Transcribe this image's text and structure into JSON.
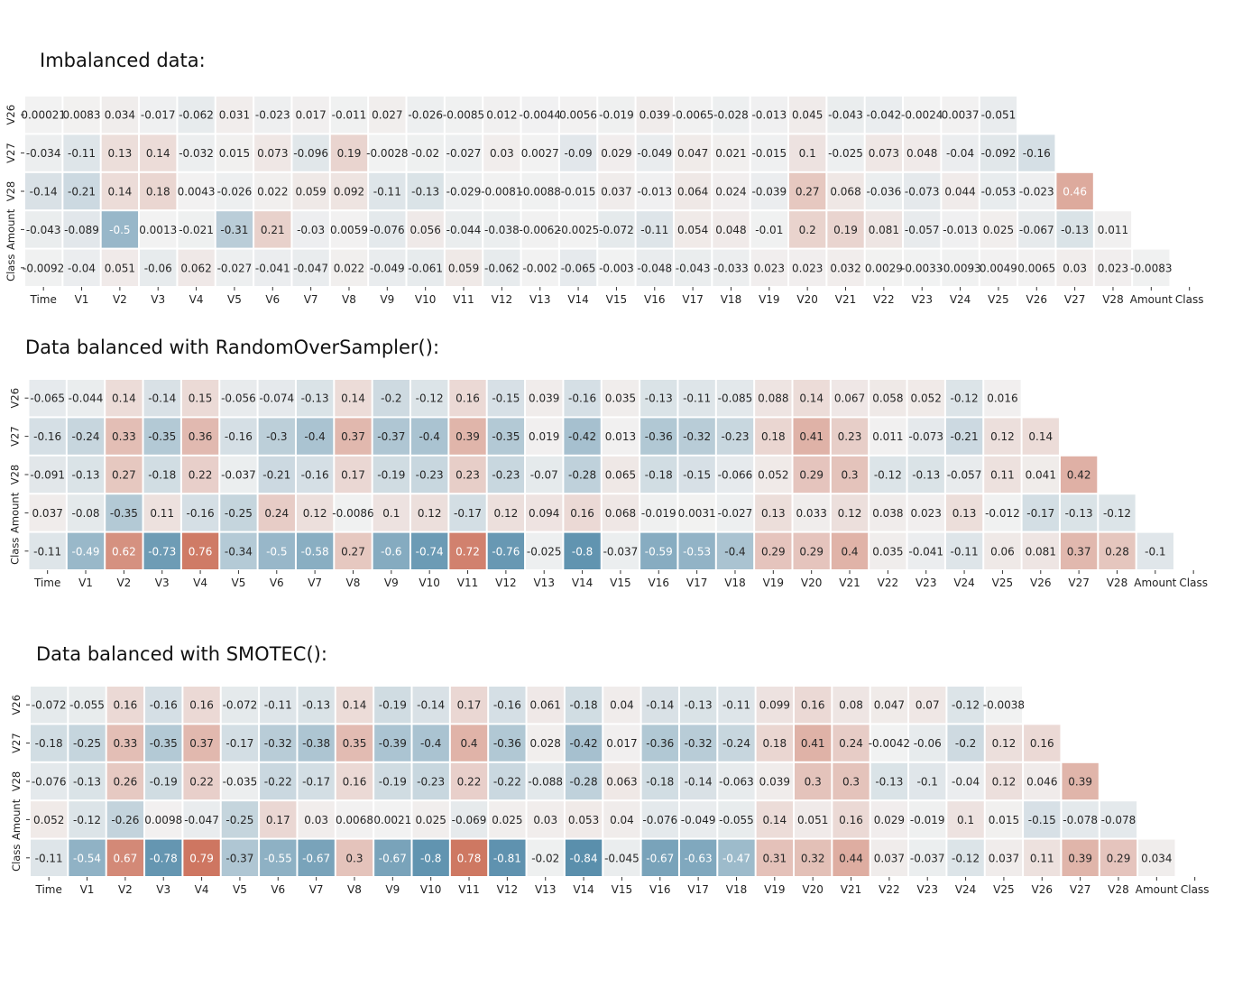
{
  "chart_data": [
    {
      "type": "heatmap",
      "title": "Imbalanced data:",
      "x_labels": [
        "Time",
        "V1",
        "V2",
        "V3",
        "V4",
        "V5",
        "V6",
        "V7",
        "V8",
        "V9",
        "V10",
        "V11",
        "V12",
        "V13",
        "V14",
        "V15",
        "V16",
        "V17",
        "V18",
        "V19",
        "V20",
        "V21",
        "V22",
        "V23",
        "V24",
        "V25",
        "V26",
        "V27",
        "V28",
        "Amount",
        "Class"
      ],
      "y_labels": [
        "V26",
        "V27",
        "V28",
        "Amount",
        "Class"
      ],
      "color_range": [
        -1,
        1
      ],
      "colors": {
        "negative": "#3d7c9f",
        "neutral": "#f2f2f2",
        "positive": "#c4553a"
      },
      "values": [
        [
          "0.00021",
          "0.0083",
          "0.034",
          "-0.017",
          "-0.062",
          "0.031",
          "-0.023",
          "0.017",
          "-0.011",
          "0.027",
          "-0.026",
          "-0.0085",
          "0.012",
          "-0.0044",
          "0.0056",
          "-0.019",
          "0.039",
          "-0.0065",
          "-0.028",
          "-0.013",
          "0.045",
          "-0.043",
          "-0.042",
          "-0.0024",
          "0.0037",
          "-0.051"
        ],
        [
          "-0.034",
          "-0.11",
          "0.13",
          "0.14",
          "-0.032",
          "0.015",
          "0.073",
          "-0.096",
          "0.19",
          "-0.0028",
          "-0.02",
          "-0.027",
          "0.03",
          "0.0027",
          "-0.09",
          "0.029",
          "-0.049",
          "0.047",
          "0.021",
          "-0.015",
          "0.1",
          "-0.025",
          "0.073",
          "0.048",
          "-0.04",
          "-0.092",
          "-0.16"
        ],
        [
          "-0.14",
          "-0.21",
          "0.14",
          "0.18",
          "0.0043",
          "-0.026",
          "0.022",
          "0.059",
          "0.092",
          "-0.11",
          "-0.13",
          "-0.029",
          "-0.0081",
          "-0.0088",
          "-0.015",
          "0.037",
          "-0.013",
          "0.064",
          "0.024",
          "-0.039",
          "0.27",
          "0.068",
          "-0.036",
          "-0.073",
          "0.044",
          "-0.053",
          "-0.023",
          "0.46"
        ],
        [
          "-0.043",
          "-0.089",
          "-0.5",
          "0.0013",
          "-0.021",
          "-0.31",
          "0.21",
          "-0.03",
          "0.0059",
          "-0.076",
          "0.056",
          "-0.044",
          "-0.038",
          "-0.0062",
          "-0.0025",
          "-0.072",
          "-0.11",
          "0.054",
          "0.048",
          "-0.01",
          "0.2",
          "0.19",
          "0.081",
          "-0.057",
          "-0.013",
          "0.025",
          "-0.067",
          "-0.13",
          "0.011"
        ],
        [
          "-0.0092",
          "-0.04",
          "0.051",
          "-0.06",
          "0.062",
          "-0.027",
          "-0.041",
          "-0.047",
          "0.022",
          "-0.049",
          "-0.061",
          "0.059",
          "-0.062",
          "-0.002",
          "-0.065",
          "-0.003",
          "-0.048",
          "-0.043",
          "-0.033",
          "0.023",
          "0.023",
          "0.032",
          "0.0029",
          "-0.0033",
          "-0.0093",
          "0.0049",
          "0.0065",
          "0.03",
          "0.023",
          "-0.0083"
        ]
      ]
    },
    {
      "type": "heatmap",
      "title": "Data balanced with RandomOverSampler():",
      "x_labels": [
        "Time",
        "V1",
        "V2",
        "V3",
        "V4",
        "V5",
        "V6",
        "V7",
        "V8",
        "V9",
        "V10",
        "V11",
        "V12",
        "V13",
        "V14",
        "V15",
        "V16",
        "V17",
        "V18",
        "V19",
        "V20",
        "V21",
        "V22",
        "V23",
        "V24",
        "V25",
        "V26",
        "V27",
        "V28",
        "Amount",
        "Class"
      ],
      "y_labels": [
        "V26",
        "V27",
        "V28",
        "Amount",
        "Class"
      ],
      "color_range": [
        -1,
        1
      ],
      "colors": {
        "negative": "#3d7c9f",
        "neutral": "#f2f2f2",
        "positive": "#c4553a"
      },
      "values": [
        [
          "-0.065",
          "-0.044",
          "0.14",
          "-0.14",
          "0.15",
          "-0.056",
          "-0.074",
          "-0.13",
          "0.14",
          "-0.2",
          "-0.12",
          "0.16",
          "-0.15",
          "0.039",
          "-0.16",
          "0.035",
          "-0.13",
          "-0.11",
          "-0.085",
          "0.088",
          "0.14",
          "0.067",
          "0.058",
          "0.052",
          "-0.12",
          "0.016"
        ],
        [
          "-0.16",
          "-0.24",
          "0.33",
          "-0.35",
          "0.36",
          "-0.16",
          "-0.3",
          "-0.4",
          "0.37",
          "-0.37",
          "-0.4",
          "0.39",
          "-0.35",
          "0.019",
          "-0.42",
          "0.013",
          "-0.36",
          "-0.32",
          "-0.23",
          "0.18",
          "0.41",
          "0.23",
          "0.011",
          "-0.073",
          "-0.21",
          "0.12",
          "0.14"
        ],
        [
          "-0.091",
          "-0.13",
          "0.27",
          "-0.18",
          "0.22",
          "-0.037",
          "-0.21",
          "-0.16",
          "0.17",
          "-0.19",
          "-0.23",
          "0.23",
          "-0.23",
          "-0.07",
          "-0.28",
          "0.065",
          "-0.18",
          "-0.15",
          "-0.066",
          "0.052",
          "0.29",
          "0.3",
          "-0.12",
          "-0.13",
          "-0.057",
          "0.11",
          "0.041",
          "0.42"
        ],
        [
          "0.037",
          "-0.08",
          "-0.35",
          "0.11",
          "-0.16",
          "-0.25",
          "0.24",
          "0.12",
          "-0.0086",
          "0.1",
          "0.12",
          "-0.17",
          "0.12",
          "0.094",
          "0.16",
          "0.068",
          "-0.019",
          "0.0031",
          "-0.027",
          "0.13",
          "0.033",
          "0.12",
          "0.038",
          "0.023",
          "0.13",
          "-0.012",
          "-0.17",
          "-0.13",
          "-0.12"
        ],
        [
          "-0.11",
          "-0.49",
          "0.62",
          "-0.73",
          "0.76",
          "-0.34",
          "-0.5",
          "-0.58",
          "0.27",
          "-0.6",
          "-0.74",
          "0.72",
          "-0.76",
          "-0.025",
          "-0.8",
          "-0.037",
          "-0.59",
          "-0.53",
          "-0.4",
          "0.29",
          "0.29",
          "0.4",
          "0.035",
          "-0.041",
          "-0.11",
          "0.06",
          "0.081",
          "0.37",
          "0.28",
          "-0.1"
        ]
      ]
    },
    {
      "type": "heatmap",
      "title": "Data balanced with SMOTEC():",
      "x_labels": [
        "Time",
        "V1",
        "V2",
        "V3",
        "V4",
        "V5",
        "V6",
        "V7",
        "V8",
        "V9",
        "V10",
        "V11",
        "V12",
        "V13",
        "V14",
        "V15",
        "V16",
        "V17",
        "V18",
        "V19",
        "V20",
        "V21",
        "V22",
        "V23",
        "V24",
        "V25",
        "V26",
        "V27",
        "V28",
        "Amount",
        "Class"
      ],
      "y_labels": [
        "V26",
        "V27",
        "V28",
        "Amount",
        "Class"
      ],
      "color_range": [
        -1,
        1
      ],
      "colors": {
        "negative": "#3d7c9f",
        "neutral": "#f2f2f2",
        "positive": "#c4553a"
      },
      "values": [
        [
          "-0.072",
          "-0.055",
          "0.16",
          "-0.16",
          "0.16",
          "-0.072",
          "-0.11",
          "-0.13",
          "0.14",
          "-0.19",
          "-0.14",
          "0.17",
          "-0.16",
          "0.061",
          "-0.18",
          "0.04",
          "-0.14",
          "-0.13",
          "-0.11",
          "0.099",
          "0.16",
          "0.08",
          "0.047",
          "0.07",
          "-0.12",
          "-0.0038"
        ],
        [
          "-0.18",
          "-0.25",
          "0.33",
          "-0.35",
          "0.37",
          "-0.17",
          "-0.32",
          "-0.38",
          "0.35",
          "-0.39",
          "-0.4",
          "0.4",
          "-0.36",
          "0.028",
          "-0.42",
          "0.017",
          "-0.36",
          "-0.32",
          "-0.24",
          "0.18",
          "0.41",
          "0.24",
          "-0.0042",
          "-0.06",
          "-0.2",
          "0.12",
          "0.16"
        ],
        [
          "-0.076",
          "-0.13",
          "0.26",
          "-0.19",
          "0.22",
          "-0.035",
          "-0.22",
          "-0.17",
          "0.16",
          "-0.19",
          "-0.23",
          "0.22",
          "-0.22",
          "-0.088",
          "-0.28",
          "0.063",
          "-0.18",
          "-0.14",
          "-0.063",
          "0.039",
          "0.3",
          "0.3",
          "-0.13",
          "-0.1",
          "-0.04",
          "0.12",
          "0.046",
          "0.39"
        ],
        [
          "0.052",
          "-0.12",
          "-0.26",
          "0.0098",
          "-0.047",
          "-0.25",
          "0.17",
          "0.03",
          "0.0068",
          "0.0021",
          "0.025",
          "-0.069",
          "0.025",
          "0.03",
          "0.053",
          "0.04",
          "-0.076",
          "-0.049",
          "-0.055",
          "0.14",
          "0.051",
          "0.16",
          "0.029",
          "-0.019",
          "0.1",
          "0.015",
          "-0.15",
          "-0.078",
          "-0.078"
        ],
        [
          "-0.11",
          "-0.54",
          "0.67",
          "-0.78",
          "0.79",
          "-0.37",
          "-0.55",
          "-0.67",
          "0.3",
          "-0.67",
          "-0.8",
          "0.78",
          "-0.81",
          "-0.02",
          "-0.84",
          "-0.045",
          "-0.67",
          "-0.63",
          "-0.47",
          "0.31",
          "0.32",
          "0.44",
          "0.037",
          "-0.037",
          "-0.12",
          "0.037",
          "0.11",
          "0.39",
          "0.29",
          "0.034"
        ]
      ]
    }
  ]
}
